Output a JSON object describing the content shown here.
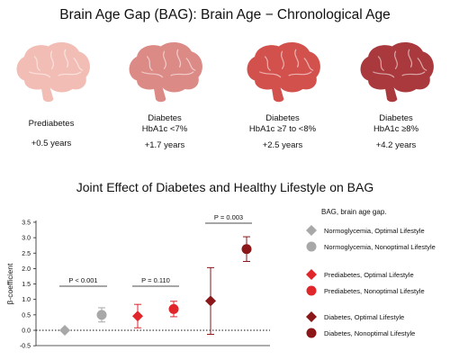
{
  "header": {
    "title": "Brain Age Gap (BAG): Brain Age − Chronological Age"
  },
  "categories": [
    {
      "line1": "Prediabetes",
      "line2": "",
      "value": "+0.5 years",
      "color": "#f2bdb5"
    },
    {
      "line1": "Diabetes",
      "line2": "HbA1c <7%",
      "value": "+1.7 years",
      "color": "#dc8a86"
    },
    {
      "line1": "Diabetes",
      "line2": "HbA1c ≥7 to <8%",
      "value": "+2.5 years",
      "color": "#d2514d"
    },
    {
      "line1": "Diabetes",
      "line2": "HbA1c ≥8%",
      "value": "+4.2 years",
      "color": "#a9393c"
    }
  ],
  "chart_data": {
    "type": "scatter",
    "title": "Joint Effect of Diabetes and Healthy Lifestyle on BAG",
    "ylabel": "β-coefficient",
    "ylim": [
      -0.5,
      3.5
    ],
    "yticks": [
      "-0.5",
      "0.0",
      "0.5",
      "1.0",
      "1.5",
      "2.0",
      "2.5",
      "3.0",
      "3.5"
    ],
    "note": "BAG, brain age gap.",
    "series": [
      {
        "name": "Normoglycemia, Optimal Lifestyle",
        "marker": "diamond",
        "color": "#a8a8a8",
        "x": 1,
        "y": 0.0,
        "lo": 0.0,
        "hi": 0.0
      },
      {
        "name": "Normoglycemia, Nonoptimal Lifestyle",
        "marker": "circle",
        "color": "#a8a8a8",
        "x": 2,
        "y": 0.5,
        "lo": 0.27,
        "hi": 0.73
      },
      {
        "name": "Prediabetes, Optimal Lifestyle",
        "marker": "diamond",
        "color": "#e0252b",
        "x": 3,
        "y": 0.46,
        "lo": 0.08,
        "hi": 0.84
      },
      {
        "name": "Prediabetes, Nonoptimal Lifestyle",
        "marker": "circle",
        "color": "#e0252b",
        "x": 4,
        "y": 0.69,
        "lo": 0.44,
        "hi": 0.94
      },
      {
        "name": "Diabetes, Optimal Lifestyle",
        "marker": "diamond",
        "color": "#8b1719",
        "x": 5,
        "y": 0.95,
        "lo": -0.13,
        "hi": 2.03
      },
      {
        "name": "Diabetes, Nonoptimal Lifestyle",
        "marker": "circle",
        "color": "#8b1719",
        "x": 6,
        "y": 2.63,
        "lo": 2.23,
        "hi": 3.03
      }
    ],
    "annotations": [
      {
        "text": "P < 0.001",
        "from": 1,
        "to": 2
      },
      {
        "text": "P = 0.110",
        "from": 3,
        "to": 4
      },
      {
        "text": "P = 0.003",
        "from": 5,
        "to": 6
      }
    ]
  }
}
